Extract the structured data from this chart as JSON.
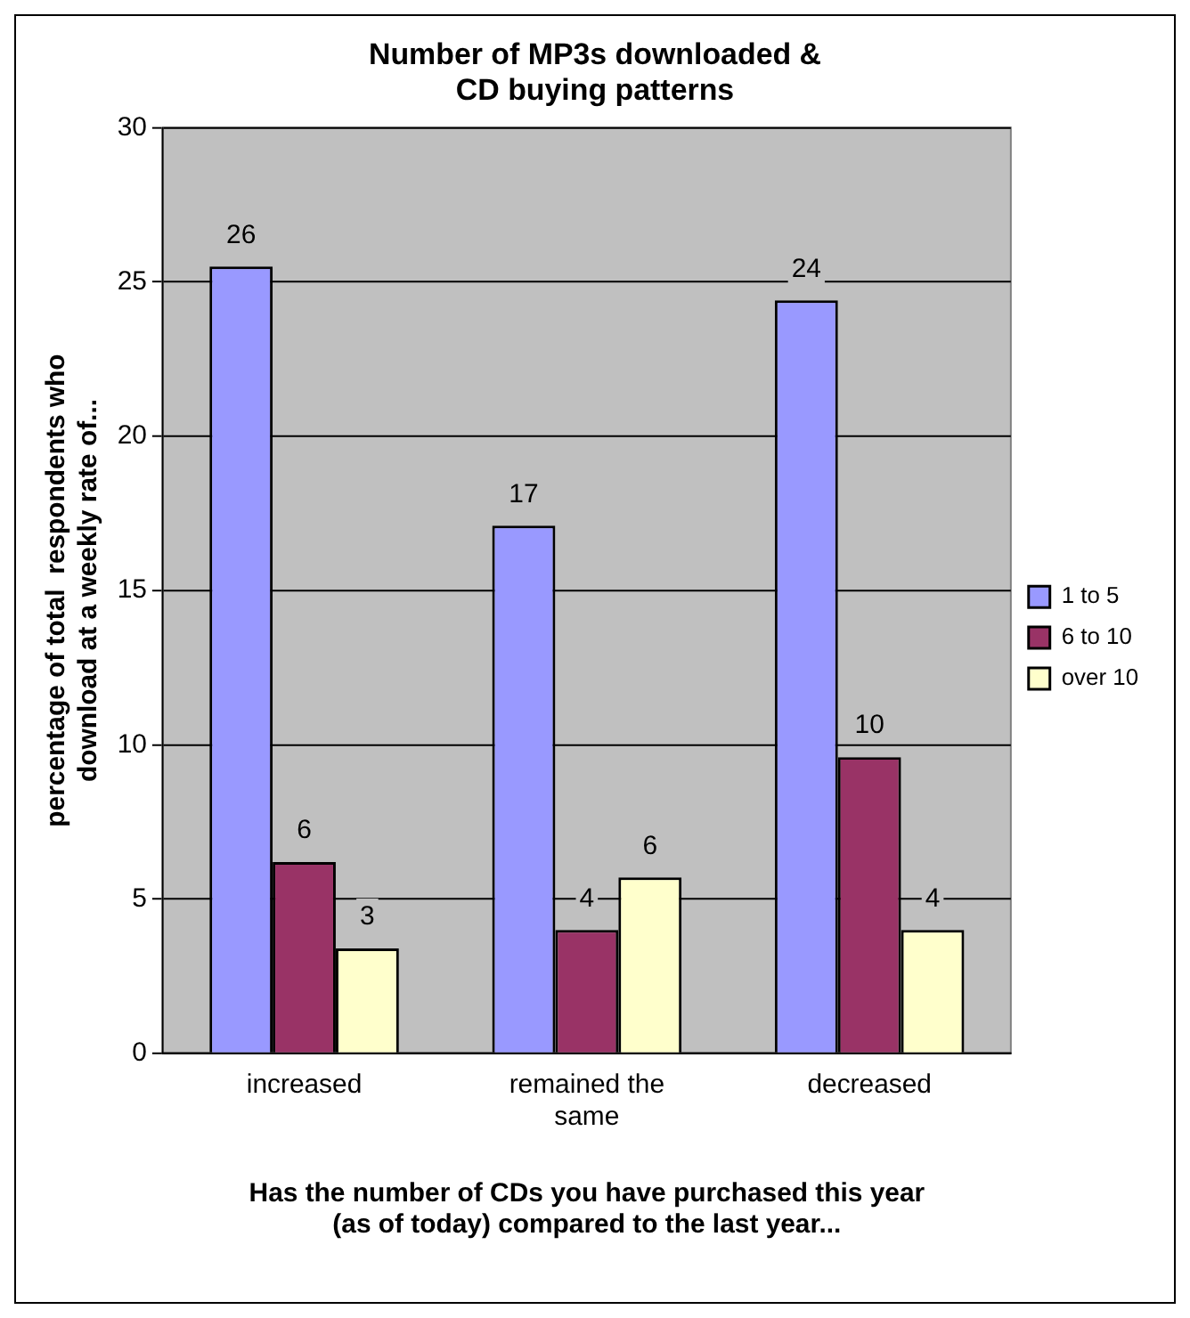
{
  "chart_data": {
    "type": "bar",
    "title": "Number of MP3s downloaded & CD buying patterns",
    "xlabel": "Has the number of CDs you have purchased this year (as of today) compared to the last year...",
    "ylabel": "percentage of total  respondents who download at a weekly rate of...",
    "categories": [
      "increased",
      "remained the same",
      "decreased"
    ],
    "series": [
      {
        "name": "1 to 5",
        "color": "#9999ff",
        "values": [
          25.5,
          17.1,
          24.4
        ],
        "value_labels": [
          "26",
          "17",
          "24"
        ]
      },
      {
        "name": "6 to 10",
        "color": "#993366",
        "values": [
          6.2,
          4.0,
          9.6
        ],
        "value_labels": [
          "6",
          "4",
          "10"
        ]
      },
      {
        "name": "over 10",
        "color": "#ffffcc",
        "values": [
          3.4,
          5.7,
          4.0
        ],
        "value_labels": [
          "3",
          "6",
          "4"
        ]
      }
    ],
    "ylim": [
      0,
      30
    ],
    "yticks": [
      0,
      5,
      10,
      15,
      20,
      25,
      30
    ],
    "grid": "y",
    "legend": "right"
  }
}
